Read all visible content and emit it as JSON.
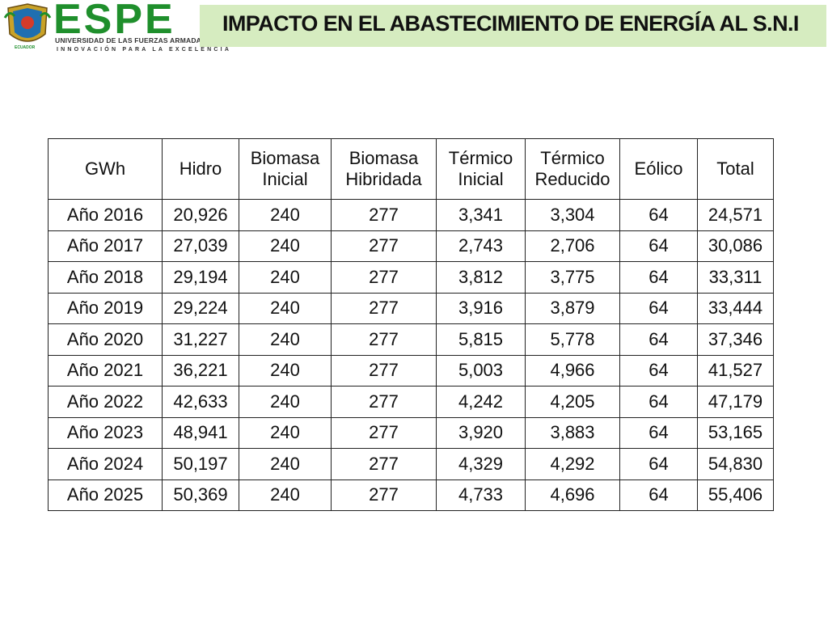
{
  "header": {
    "logo_text": "ESPE",
    "logo_subtitle": "UNIVERSIDAD DE LAS FUERZAS ARMADAS",
    "logo_tagline": "INNOVACIÓN PARA LA EXCELENCIA",
    "crest_text": "ECUADOR",
    "title": "IMPACTO EN EL ABASTECIMIENTO DE ENERGÍA AL S.N.I",
    "title_bar_color": "#d6ecc0",
    "logo_color": "#1f8f2c"
  },
  "table": {
    "headers": [
      "GWh",
      "Hidro",
      "Biomasa Inicial",
      "Biomasa Hibridada",
      "Térmico Inicial",
      "Térmico Reducido",
      "Eólico",
      "Total"
    ],
    "rows": [
      [
        "Año 2016",
        "20,926",
        "240",
        "277",
        "3,341",
        "3,304",
        "64",
        "24,571"
      ],
      [
        "Año 2017",
        "27,039",
        "240",
        "277",
        "2,743",
        "2,706",
        "64",
        "30,086"
      ],
      [
        "Año 2018",
        "29,194",
        "240",
        "277",
        "3,812",
        "3,775",
        "64",
        "33,311"
      ],
      [
        "Año 2019",
        "29,224",
        "240",
        "277",
        "3,916",
        "3,879",
        "64",
        "33,444"
      ],
      [
        "Año 2020",
        "31,227",
        "240",
        "277",
        "5,815",
        "5,778",
        "64",
        "37,346"
      ],
      [
        "Año 2021",
        "36,221",
        "240",
        "277",
        "5,003",
        "4,966",
        "64",
        "41,527"
      ],
      [
        "Año 2022",
        "42,633",
        "240",
        "277",
        "4,242",
        "4,205",
        "64",
        "47,179"
      ],
      [
        "Año 2023",
        "48,941",
        "240",
        "277",
        "3,920",
        "3,883",
        "64",
        "53,165"
      ],
      [
        "Año 2024",
        "50,197",
        "240",
        "277",
        "4,329",
        "4,292",
        "64",
        "54,830"
      ],
      [
        "Año 2025",
        "50,369",
        "240",
        "277",
        "4,733",
        "4,696",
        "64",
        "55,406"
      ]
    ]
  }
}
